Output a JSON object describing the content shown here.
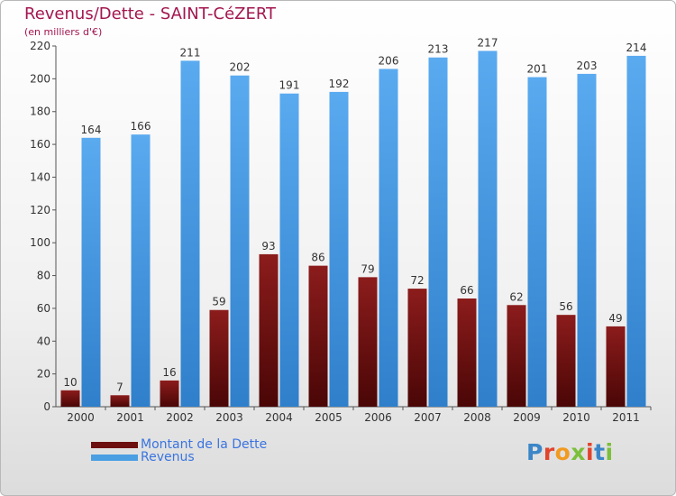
{
  "header": {
    "title": "Revenus/Dette - SAINT-CéZERT",
    "subtitle": "(en milliers d'€)"
  },
  "chart_data": {
    "type": "bar",
    "categories": [
      "2000",
      "2001",
      "2002",
      "2003",
      "2004",
      "2005",
      "2006",
      "2007",
      "2008",
      "2009",
      "2010",
      "2011"
    ],
    "series": [
      {
        "name": "Montant de la Dette",
        "color": "#6e0f0f",
        "values": [
          10,
          7,
          16,
          59,
          93,
          86,
          79,
          72,
          66,
          62,
          56,
          49
        ]
      },
      {
        "name": "Revenus",
        "color": "#4a9fe3",
        "values": [
          164,
          166,
          211,
          202,
          191,
          192,
          206,
          213,
          217,
          201,
          203,
          214
        ]
      }
    ],
    "ylim": [
      0,
      220
    ],
    "yticks": [
      0,
      20,
      40,
      60,
      80,
      100,
      120,
      140,
      160,
      180,
      200,
      220
    ],
    "grid": false,
    "legend_position": "bottom-left"
  },
  "logo": {
    "letters": [
      {
        "ch": "P",
        "color": "#3b86c8"
      },
      {
        "ch": "r",
        "color": "#e2442b"
      },
      {
        "ch": "o",
        "color": "#f29a1f"
      },
      {
        "ch": "x",
        "color": "#7bbf3a"
      },
      {
        "ch": "i",
        "color": "#e2442b"
      },
      {
        "ch": "t",
        "color": "#3b86c8"
      },
      {
        "ch": "i",
        "color": "#7bbf3a"
      }
    ]
  }
}
